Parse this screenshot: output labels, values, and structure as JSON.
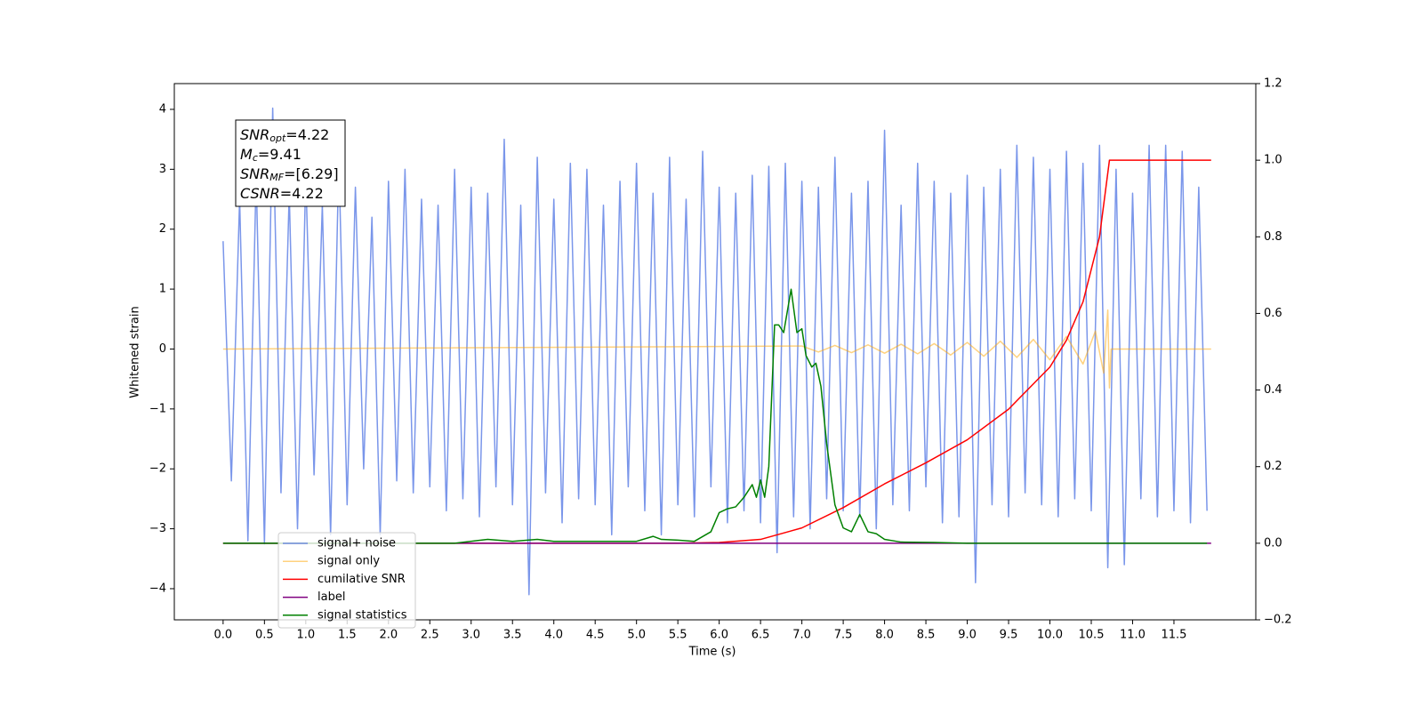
{
  "chart_data": {
    "type": "line",
    "xlabel": "Time (s)",
    "ylabel": "Whitened strain",
    "xlim": [
      -0.59,
      12.49
    ],
    "ylim": [
      -4.52,
      4.43
    ],
    "y2lim": [
      -0.2,
      1.2
    ],
    "xticks": [
      {
        "value": 0,
        "label": "0.0"
      },
      0.5,
      {
        "value": 1,
        "label": "1.0"
      },
      1.5,
      {
        "value": 2,
        "label": "2.0"
      },
      2.5,
      {
        "value": 3,
        "label": "3.0"
      },
      3.5,
      {
        "value": 4,
        "label": "4.0"
      },
      4.5,
      {
        "value": 5,
        "label": "5.0"
      },
      5.5,
      {
        "value": 6,
        "label": "6.0"
      },
      6.5,
      {
        "value": 7,
        "label": "7.0"
      },
      7.5,
      {
        "value": 8,
        "label": "8.0"
      },
      8.5,
      {
        "value": 9,
        "label": "9.0"
      },
      9.5,
      {
        "value": 10,
        "label": "10.0"
      },
      10.5,
      {
        "value": 11,
        "label": "11.0"
      },
      11.5
    ],
    "yticks": [
      {
        "value": -4,
        "label": "−4"
      },
      {
        "value": -3,
        "label": "−3"
      },
      {
        "value": -2,
        "label": "−2"
      },
      {
        "value": -1,
        "label": "−1"
      },
      0,
      1,
      2,
      3,
      4
    ],
    "y2ticks": [
      {
        "value": -0.2,
        "label": "−0.2"
      },
      {
        "value": 0,
        "label": "0.0"
      },
      0.2,
      0.4,
      0.6,
      0.8,
      {
        "value": 1,
        "label": "1.0"
      },
      1.2
    ],
    "legend": "lower left",
    "text_box": [
      {
        "symbol": "SNR",
        "subscript": "opt",
        "value": "=4.22"
      },
      {
        "symbol": "M",
        "subscript": "c",
        "value": "=9.41"
      },
      {
        "symbol": "SNR",
        "subscript": "MF",
        "value": "=[6.29]"
      },
      {
        "symbol": "CSNR",
        "subscript": "",
        "value": "=4.22"
      }
    ],
    "series": [
      {
        "name": "signal+ noise",
        "color": "#4169e1",
        "alpha": 0.7,
        "axis": "y",
        "x": [
          0.0,
          0.1,
          0.2,
          0.3,
          0.4,
          0.5,
          0.6,
          0.7,
          0.8,
          0.9,
          1.0,
          1.1,
          1.2,
          1.3,
          1.4,
          1.5,
          1.6,
          1.7,
          1.8,
          1.9,
          2.0,
          2.1,
          2.2,
          2.3,
          2.4,
          2.5,
          2.6,
          2.7,
          2.8,
          2.9,
          3.0,
          3.1,
          3.2,
          3.3,
          3.4,
          3.5,
          3.6,
          3.7,
          3.8,
          3.9,
          4.0,
          4.1,
          4.2,
          4.3,
          4.4,
          4.5,
          4.6,
          4.7,
          4.8,
          4.9,
          5.0,
          5.1,
          5.2,
          5.3,
          5.4,
          5.5,
          5.6,
          5.7,
          5.8,
          5.9,
          6.0,
          6.1,
          6.2,
          6.3,
          6.4,
          6.5,
          6.6,
          6.7,
          6.8,
          6.9,
          7.0,
          7.1,
          7.2,
          7.3,
          7.4,
          7.5,
          7.6,
          7.7,
          7.8,
          7.9,
          8.0,
          8.1,
          8.2,
          8.3,
          8.4,
          8.5,
          8.6,
          8.7,
          8.8,
          8.9,
          9.0,
          9.1,
          9.2,
          9.3,
          9.4,
          9.5,
          9.6,
          9.7,
          9.8,
          9.9,
          10.0,
          10.1,
          10.2,
          10.3,
          10.4,
          10.5,
          10.6,
          10.7,
          10.8,
          10.9,
          11.0,
          11.1,
          11.2,
          11.3,
          11.4,
          11.5,
          11.6,
          11.7,
          11.8,
          11.9
        ],
        "values": [
          1.8,
          -2.2,
          2.5,
          -3.2,
          2.9,
          -3.25,
          4.02,
          -2.4,
          2.6,
          -3.0,
          2.9,
          -2.1,
          2.4,
          -3.1,
          3.2,
          -2.6,
          2.7,
          -2.0,
          2.2,
          -3.1,
          2.8,
          -2.2,
          3.0,
          -2.4,
          2.5,
          -2.3,
          2.4,
          -2.7,
          3.0,
          -2.5,
          2.7,
          -2.8,
          2.6,
          -2.3,
          3.5,
          -2.6,
          2.4,
          -4.1,
          3.2,
          -2.4,
          2.5,
          -2.9,
          3.1,
          -2.5,
          3.0,
          -2.6,
          2.4,
          -3.1,
          2.8,
          -2.3,
          3.1,
          -2.7,
          2.6,
          -3.1,
          3.2,
          -2.6,
          2.5,
          -2.8,
          3.3,
          -2.3,
          2.7,
          -2.9,
          2.6,
          -2.7,
          2.9,
          -2.9,
          3.05,
          -3.4,
          3.1,
          -2.8,
          2.8,
          -3.0,
          2.7,
          -2.5,
          3.2,
          -2.7,
          2.6,
          -2.8,
          2.8,
          -3.0,
          3.65,
          -2.6,
          2.4,
          -2.7,
          3.1,
          -2.3,
          2.8,
          -2.9,
          2.6,
          -2.8,
          2.9,
          -3.9,
          2.7,
          -2.6,
          3.0,
          -2.8,
          3.4,
          -2.4,
          3.2,
          -2.6,
          3.0,
          -2.8,
          3.3,
          -2.5,
          3.1,
          -2.7,
          3.4,
          -3.65,
          3.0,
          -3.6,
          2.6,
          -2.5,
          3.4,
          -2.8,
          3.4,
          -2.7,
          3.3,
          -2.9,
          2.7,
          -2.7
        ]
      },
      {
        "name": "signal only",
        "color": "#ffa500",
        "alpha": 0.5,
        "axis": "y",
        "x": [
          0.0,
          7.0,
          7.2,
          7.4,
          7.6,
          7.8,
          8.0,
          8.2,
          8.4,
          8.6,
          8.8,
          9.0,
          9.2,
          9.4,
          9.6,
          9.8,
          10.0,
          10.2,
          10.4,
          10.55,
          10.65,
          10.7,
          10.72,
          10.74,
          11.95
        ],
        "values": [
          0,
          0.05,
          -0.05,
          0.06,
          -0.06,
          0.07,
          -0.07,
          0.08,
          -0.08,
          0.09,
          -0.1,
          0.11,
          -0.12,
          0.13,
          -0.14,
          0.16,
          -0.18,
          0.21,
          -0.25,
          0.3,
          -0.4,
          0.65,
          -0.65,
          0,
          0
        ]
      },
      {
        "name": "cumilative SNR",
        "color": "#ff0000",
        "alpha": 1,
        "axis": "y2",
        "x": [
          0.0,
          5.5,
          6.0,
          6.5,
          7.0,
          7.5,
          8.0,
          8.5,
          9.0,
          9.5,
          10.0,
          10.2,
          10.4,
          10.6,
          10.72,
          11.95
        ],
        "values": [
          0,
          0,
          0.002,
          0.01,
          0.04,
          0.093,
          0.155,
          0.21,
          0.27,
          0.35,
          0.46,
          0.53,
          0.63,
          0.8,
          1.0,
          1.0
        ]
      },
      {
        "name": "label",
        "color": "#800080",
        "alpha": 1,
        "axis": "y2",
        "x": [
          0.0,
          11.95
        ],
        "values": [
          0,
          0
        ]
      },
      {
        "name": "signal statistics",
        "color": "#008000",
        "alpha": 1,
        "axis": "y2",
        "x": [
          0.0,
          2.8,
          3.2,
          3.5,
          3.8,
          4.0,
          4.5,
          5.0,
          5.2,
          5.3,
          5.5,
          5.7,
          5.9,
          6.0,
          6.1,
          6.2,
          6.3,
          6.4,
          6.45,
          6.5,
          6.55,
          6.6,
          6.67,
          6.72,
          6.78,
          6.87,
          6.94,
          7.0,
          7.05,
          7.12,
          7.17,
          7.23,
          7.3,
          7.4,
          7.5,
          7.6,
          7.7,
          7.8,
          7.9,
          8.0,
          8.2,
          8.6,
          9.0,
          11.9
        ],
        "values": [
          0,
          0,
          0.01,
          0.005,
          0.01,
          0.005,
          0.005,
          0.005,
          0.018,
          0.01,
          0.008,
          0.005,
          0.03,
          0.08,
          0.09,
          0.095,
          0.12,
          0.153,
          0.12,
          0.165,
          0.12,
          0.2,
          0.57,
          0.57,
          0.55,
          0.663,
          0.55,
          0.56,
          0.49,
          0.46,
          0.47,
          0.41,
          0.26,
          0.1,
          0.04,
          0.03,
          0.075,
          0.03,
          0.025,
          0.01,
          0.003,
          0.002,
          0,
          0
        ]
      }
    ]
  }
}
